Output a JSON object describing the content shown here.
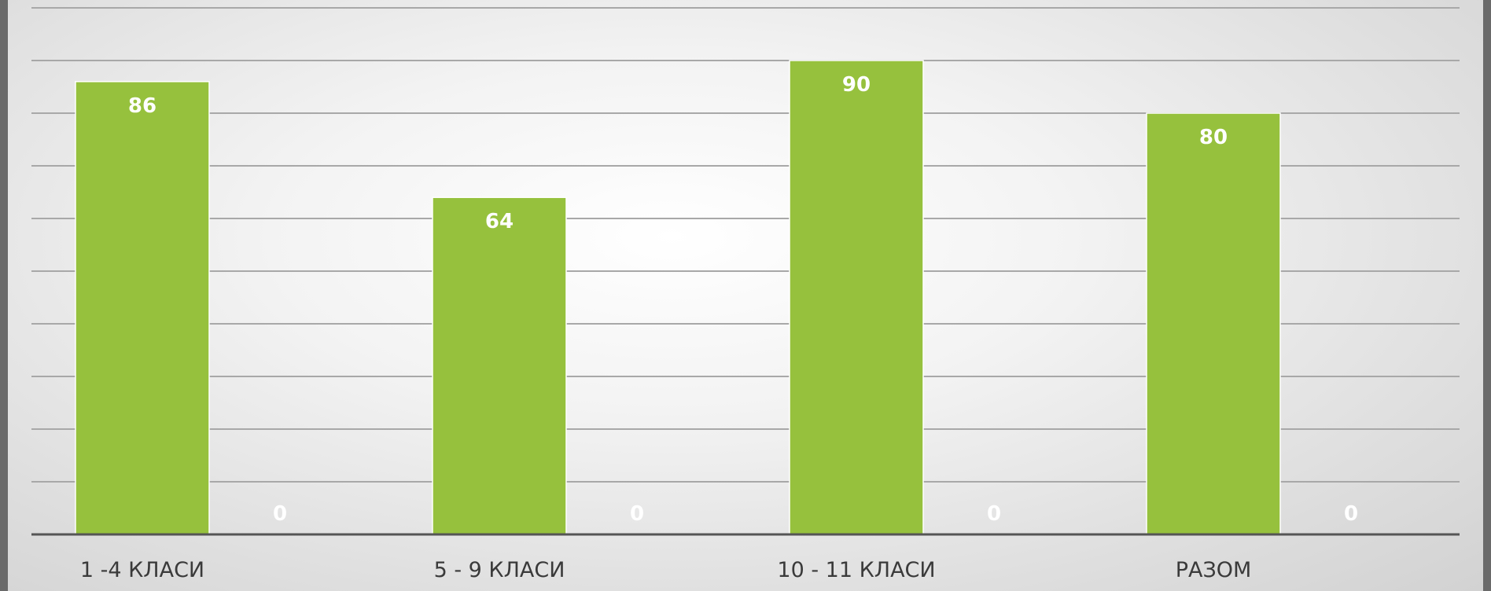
{
  "chart_data": {
    "type": "bar",
    "categories": [
      "1 -4 КЛАСИ",
      "5 - 9 КЛАСИ",
      "10 - 11 КЛАСИ",
      "РАЗОМ"
    ],
    "series": [
      {
        "values": [
          86,
          64,
          90,
          80
        ],
        "color": "#96c13d"
      },
      {
        "values": [
          0,
          0,
          0,
          0
        ],
        "color": "#96c13d"
      }
    ],
    "ylim": [
      0,
      100
    ],
    "grid": true,
    "data_labels": true,
    "title": "",
    "xlabel": "",
    "ylabel": ""
  }
}
